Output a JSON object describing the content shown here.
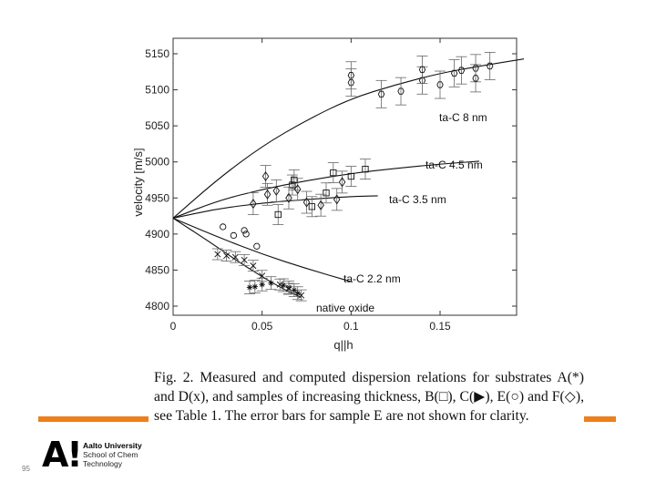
{
  "figure": {
    "chart_data": {
      "type": "scatter",
      "xlabel": "q||h",
      "ylabel": "velocity  [m/s]",
      "xlim": [
        0,
        0.2
      ],
      "ylim": [
        4790,
        5160
      ],
      "x_ticks": [
        0,
        0.05,
        0.1,
        0.15
      ],
      "x_tick_labels": [
        "0",
        "0.05",
        "0.1",
        "0.15"
      ],
      "y_ticks": [
        4800,
        4850,
        4900,
        4950,
        5000,
        5050,
        5100,
        5150
      ],
      "y_tick_labels": [
        "4800",
        "4850",
        "4900",
        "4950",
        "5000",
        "5050",
        "5100",
        "5150"
      ],
      "grid": false,
      "curves": [
        {
          "name": "ta-C  8 nm",
          "label": "ta-C  8 nm",
          "x": [
            0,
            0.025,
            0.05,
            0.075,
            0.1,
            0.125,
            0.15,
            0.175,
            0.2
          ],
          "y": [
            4922,
            4976,
            5022,
            5058,
            5088,
            5107,
            5123,
            5134,
            5144
          ]
        },
        {
          "name": "ta-C  4.5 nm",
          "label": "ta-C  4.5 nm",
          "x": [
            0,
            0.025,
            0.05,
            0.075,
            0.1,
            0.125,
            0.15,
            0.172
          ],
          "y": [
            4922,
            4946,
            4962,
            4974,
            4984,
            4991,
            4997,
            5001
          ]
        },
        {
          "name": "ta-C  3.5 nm",
          "label": "ta-C  3.5 nm",
          "x": [
            0,
            0.025,
            0.05,
            0.075,
            0.1,
            0.115
          ],
          "y": [
            4922,
            4935,
            4943,
            4948,
            4952,
            4953
          ]
        },
        {
          "name": "ta-C  2.2 nm",
          "label": "ta-C  2.2 nm",
          "x": [
            0,
            0.025,
            0.05,
            0.075,
            0.1
          ],
          "y": [
            4922,
            4896,
            4872,
            4852,
            4834
          ]
        },
        {
          "name": "native oxide",
          "label": "native oxide",
          "x": [
            0,
            0.02,
            0.04,
            0.06,
            0.072
          ],
          "y": [
            4922,
            4890,
            4856,
            4826,
            4812
          ]
        }
      ],
      "series": [
        {
          "name": "A (*)",
          "marker": "star",
          "points": [
            [
              0.043,
              4826
            ],
            [
              0.046,
              4827
            ],
            [
              0.05,
              4830
            ],
            [
              0.055,
              4832
            ],
            [
              0.062,
              4829
            ],
            [
              0.065,
              4826
            ],
            [
              0.068,
              4822
            ],
            [
              0.07,
              4818
            ]
          ]
        },
        {
          "name": "D (x)",
          "marker": "x",
          "points": [
            [
              0.025,
              4872
            ],
            [
              0.03,
              4870
            ],
            [
              0.035,
              4868
            ],
            [
              0.04,
              4864
            ],
            [
              0.045,
              4856
            ],
            [
              0.05,
              4842
            ],
            [
              0.06,
              4830
            ],
            [
              0.065,
              4824
            ],
            [
              0.072,
              4815
            ]
          ]
        },
        {
          "name": "B (□)",
          "marker": "square",
          "points": [
            [
              0.059,
              4927
            ],
            [
              0.067,
              4968
            ],
            [
              0.068,
              4975
            ],
            [
              0.078,
              4938
            ],
            [
              0.086,
              4957
            ],
            [
              0.09,
              4985
            ],
            [
              0.1,
              4980
            ],
            [
              0.108,
              4990
            ]
          ]
        },
        {
          "name": "E (○)",
          "marker": "circle",
          "points": [
            [
              0.028,
              4910
            ],
            [
              0.034,
              4898
            ],
            [
              0.04,
              4905
            ],
            [
              0.041,
              4900
            ],
            [
              0.047,
              4883
            ]
          ]
        },
        {
          "name": "F (◇)",
          "marker": "diamond",
          "points": [
            [
              0.045,
              4942
            ],
            [
              0.052,
              4980
            ],
            [
              0.053,
              4955
            ],
            [
              0.058,
              4960
            ],
            [
              0.065,
              4950
            ],
            [
              0.07,
              4962
            ],
            [
              0.075,
              4944
            ],
            [
              0.083,
              4940
            ],
            [
              0.092,
              4948
            ],
            [
              0.095,
              4972
            ]
          ]
        },
        {
          "name": "C (▶)",
          "marker": "hexagon",
          "points": [
            [
              0.1,
              5110
            ],
            [
              0.1,
              5120
            ],
            [
              0.117,
              5094
            ],
            [
              0.128,
              5098
            ],
            [
              0.14,
              5113
            ],
            [
              0.14,
              5128
            ],
            [
              0.15,
              5107
            ],
            [
              0.158,
              5123
            ],
            [
              0.162,
              5127
            ],
            [
              0.17,
              5130
            ],
            [
              0.17,
              5116
            ],
            [
              0.178,
              5133
            ]
          ]
        }
      ]
    }
  },
  "caption": {
    "text": "Fig. 2.  Measured and computed dispersion relations for substrates A(*) and D(x), and samples of increasing thickness, B(□), C(▶), E(○) and F(◇), see Table 1. The error bars for sample E are not shown for clarity."
  },
  "logo": {
    "mark": "A!",
    "university": "Aalto University",
    "school": "School of Chem",
    "department": "Technology"
  },
  "slide": {
    "page_number": "95"
  }
}
